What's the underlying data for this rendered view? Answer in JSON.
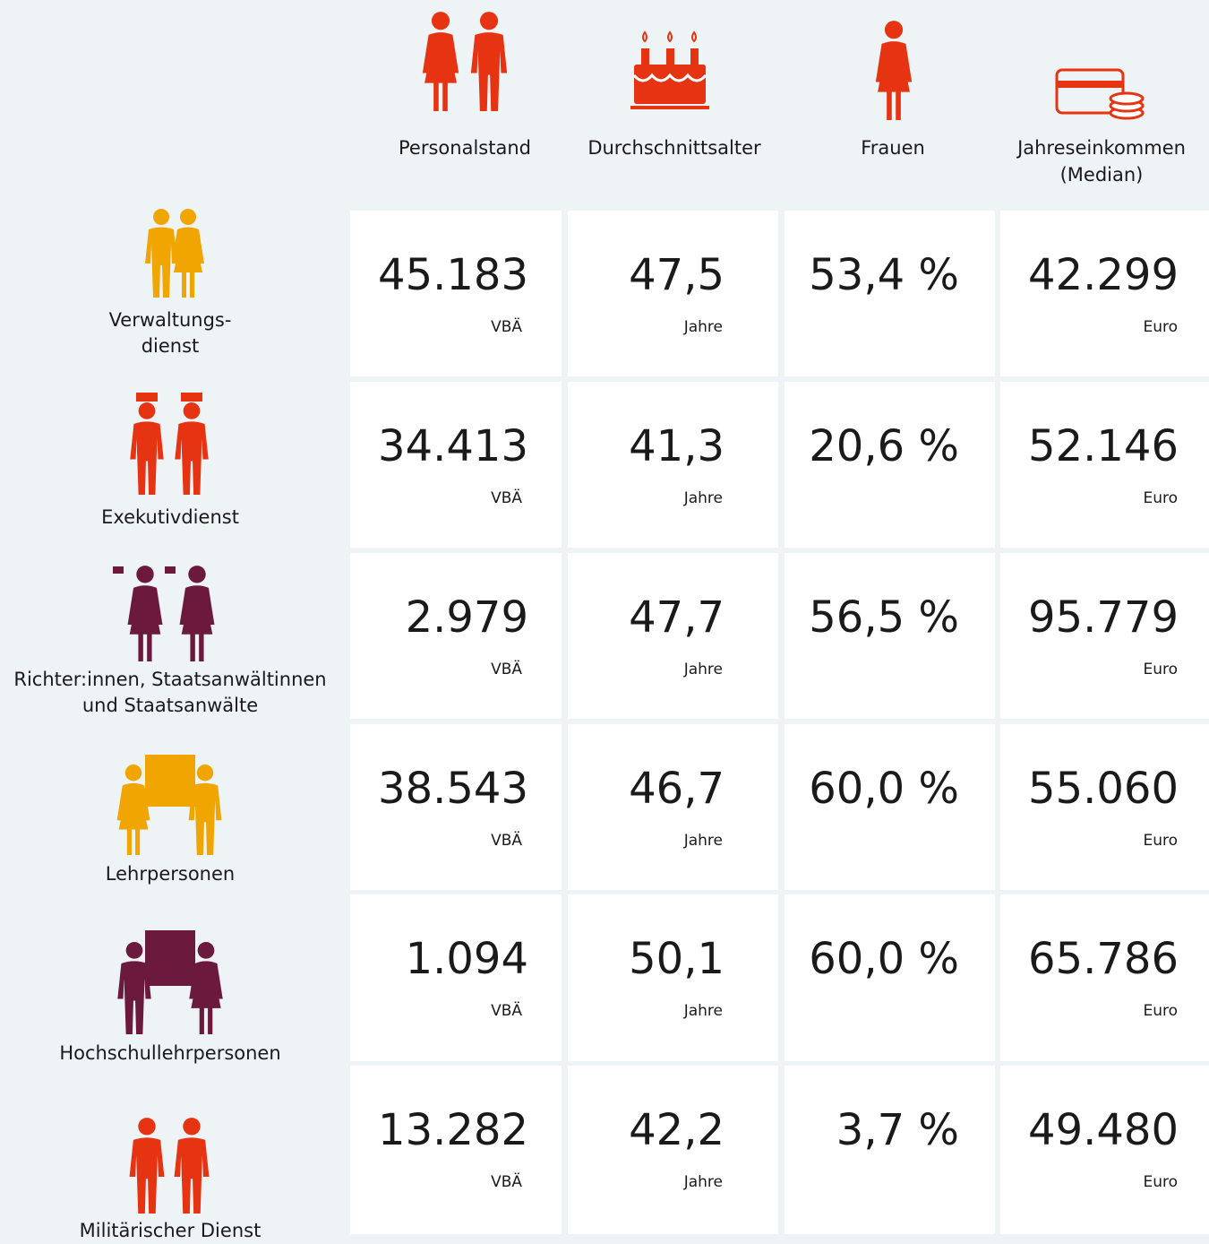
{
  "header": {
    "columns": [
      "Personalstand",
      "Durchschnittsalter",
      "Frauen",
      "Jahreseinkommen\n(Median)"
    ]
  },
  "rows": [
    {
      "label": "Verwaltungs-\ndienst",
      "cells": [
        {
          "value": "45.183",
          "unit": "VBÄ"
        },
        {
          "value": "47,5",
          "unit": "Jahre"
        },
        {
          "value": "53,4 %"
        },
        {
          "value": "42.299",
          "unit": "Euro"
        }
      ]
    },
    {
      "label": "Exekutivdienst",
      "cells": [
        {
          "value": "34.413",
          "unit": "VBÄ"
        },
        {
          "value": "41,3",
          "unit": "Jahre"
        },
        {
          "value": "20,6 %"
        },
        {
          "value": "52.146",
          "unit": "Euro"
        }
      ]
    },
    {
      "label": "Richter:innen, Staatsanwältinnen\nund Staatsanwälte",
      "cells": [
        {
          "value": "2.979",
          "unit": "VBÄ"
        },
        {
          "value": "47,7",
          "unit": "Jahre"
        },
        {
          "value": "56,5 %"
        },
        {
          "value": "95.779",
          "unit": "Euro"
        }
      ]
    },
    {
      "label": "Lehrpersonen",
      "cells": [
        {
          "value": "38.543",
          "unit": "VBÄ"
        },
        {
          "value": "46,7",
          "unit": "Jahre"
        },
        {
          "value": "60,0 %"
        },
        {
          "value": "55.060",
          "unit": "Euro"
        }
      ]
    },
    {
      "label": "Hochschullehrpersonen",
      "cells": [
        {
          "value": "1.094",
          "unit": "VBÄ"
        },
        {
          "value": "50,1",
          "unit": "Jahre"
        },
        {
          "value": "60,0 %"
        },
        {
          "value": "65.786",
          "unit": "Euro"
        }
      ]
    },
    {
      "label": "Militärischer Dienst",
      "cells": [
        {
          "value": "13.282",
          "unit": "VBÄ"
        },
        {
          "value": "42,2",
          "unit": "Jahre"
        },
        {
          "value": "3,7 %"
        },
        {
          "value": "49.480",
          "unit": "Euro"
        }
      ]
    }
  ]
}
